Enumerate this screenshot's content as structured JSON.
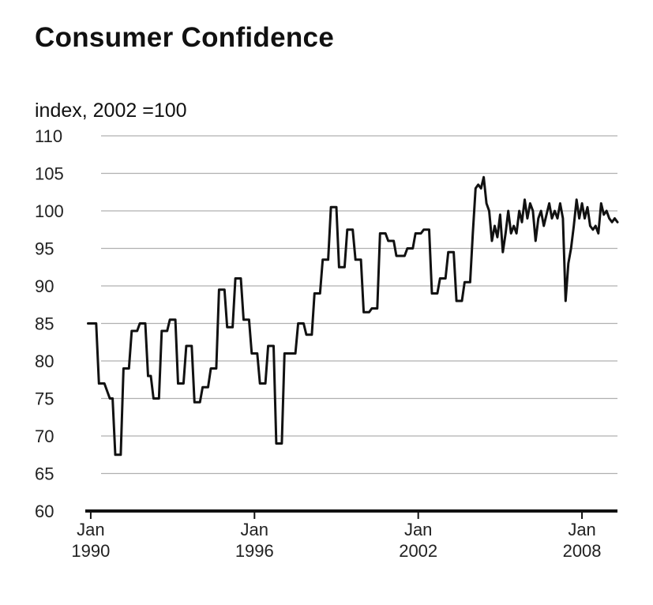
{
  "chart_data": {
    "type": "line",
    "title": "Consumer Confidence",
    "ylabel": "index, 2002 =100",
    "xlabel": "",
    "ylim": [
      60,
      110
    ],
    "yticks": [
      60,
      65,
      70,
      75,
      80,
      85,
      90,
      95,
      100,
      105,
      110
    ],
    "xlim": [
      1989.8,
      2009.3
    ],
    "xticks": [
      {
        "value": 1990,
        "line1": "Jan",
        "line2": "1990"
      },
      {
        "value": 1996,
        "line1": "Jan",
        "line2": "1996"
      },
      {
        "value": 2002,
        "line1": "Jan",
        "line2": "2002"
      },
      {
        "value": 2008,
        "line1": "Jan",
        "line2": "2008"
      }
    ],
    "grid": true,
    "series": [
      {
        "color": "#111111",
        "points": [
          [
            1989.9,
            85
          ],
          [
            1990.2,
            85
          ],
          [
            1990.3,
            77
          ],
          [
            1990.5,
            77
          ],
          [
            1990.7,
            75
          ],
          [
            1990.8,
            75
          ],
          [
            1990.9,
            67.5
          ],
          [
            1991.1,
            67.5
          ],
          [
            1991.2,
            79
          ],
          [
            1991.4,
            79
          ],
          [
            1991.5,
            84
          ],
          [
            1991.7,
            84
          ],
          [
            1991.8,
            85
          ],
          [
            1992.0,
            85
          ],
          [
            1992.1,
            78
          ],
          [
            1992.2,
            78
          ],
          [
            1992.3,
            75
          ],
          [
            1992.5,
            75
          ],
          [
            1992.6,
            84
          ],
          [
            1992.8,
            84
          ],
          [
            1992.9,
            85.5
          ],
          [
            1993.1,
            85.5
          ],
          [
            1993.2,
            77
          ],
          [
            1993.4,
            77
          ],
          [
            1993.5,
            82
          ],
          [
            1993.7,
            82
          ],
          [
            1993.8,
            74.5
          ],
          [
            1994.0,
            74.5
          ],
          [
            1994.1,
            76.5
          ],
          [
            1994.3,
            76.5
          ],
          [
            1994.4,
            79
          ],
          [
            1994.6,
            79
          ],
          [
            1994.7,
            89.5
          ],
          [
            1994.9,
            89.5
          ],
          [
            1995.0,
            84.5
          ],
          [
            1995.2,
            84.5
          ],
          [
            1995.3,
            91
          ],
          [
            1995.5,
            91
          ],
          [
            1995.6,
            85.5
          ],
          [
            1995.8,
            85.5
          ],
          [
            1995.9,
            81
          ],
          [
            1996.1,
            81
          ],
          [
            1996.2,
            77
          ],
          [
            1996.4,
            77
          ],
          [
            1996.5,
            82
          ],
          [
            1996.7,
            82
          ],
          [
            1996.8,
            69
          ],
          [
            1997.0,
            69
          ],
          [
            1997.1,
            81
          ],
          [
            1997.5,
            81
          ],
          [
            1997.6,
            85
          ],
          [
            1997.8,
            85
          ],
          [
            1997.9,
            83.5
          ],
          [
            1998.1,
            83.5
          ],
          [
            1998.2,
            89
          ],
          [
            1998.4,
            89
          ],
          [
            1998.5,
            93.5
          ],
          [
            1998.7,
            93.5
          ],
          [
            1998.8,
            100.5
          ],
          [
            1999.0,
            100.5
          ],
          [
            1999.1,
            92.5
          ],
          [
            1999.3,
            92.5
          ],
          [
            1999.4,
            97.5
          ],
          [
            1999.6,
            97.5
          ],
          [
            1999.7,
            93.5
          ],
          [
            1999.9,
            93.5
          ],
          [
            2000.0,
            86.5
          ],
          [
            2000.2,
            86.5
          ],
          [
            2000.3,
            87
          ],
          [
            2000.5,
            87
          ],
          [
            2000.6,
            97
          ],
          [
            2000.8,
            97
          ],
          [
            2000.9,
            96
          ],
          [
            2001.1,
            96
          ],
          [
            2001.2,
            94
          ],
          [
            2001.5,
            94
          ],
          [
            2001.6,
            95
          ],
          [
            2001.8,
            95
          ],
          [
            2001.9,
            97
          ],
          [
            2002.1,
            97
          ],
          [
            2002.2,
            97.5
          ],
          [
            2002.4,
            97.5
          ],
          [
            2002.5,
            89
          ],
          [
            2002.7,
            89
          ],
          [
            2002.8,
            91
          ],
          [
            2003.0,
            91
          ],
          [
            2003.1,
            94.5
          ],
          [
            2003.3,
            94.5
          ],
          [
            2003.4,
            88
          ],
          [
            2003.6,
            88
          ],
          [
            2003.7,
            90.5
          ],
          [
            2003.9,
            90.5
          ],
          [
            2004.0,
            97
          ],
          [
            2004.1,
            103
          ],
          [
            2004.2,
            103.5
          ],
          [
            2004.3,
            103
          ],
          [
            2004.4,
            104.5
          ],
          [
            2004.5,
            101
          ],
          [
            2004.6,
            100
          ],
          [
            2004.7,
            96
          ],
          [
            2004.8,
            98
          ],
          [
            2004.9,
            96.5
          ],
          [
            2005.0,
            99.5
          ],
          [
            2005.1,
            94.5
          ],
          [
            2005.2,
            97
          ],
          [
            2005.3,
            100
          ],
          [
            2005.4,
            97
          ],
          [
            2005.5,
            98
          ],
          [
            2005.6,
            97
          ],
          [
            2005.7,
            100
          ],
          [
            2005.8,
            98.5
          ],
          [
            2005.9,
            101.5
          ],
          [
            2006.0,
            99
          ],
          [
            2006.1,
            101
          ],
          [
            2006.2,
            100
          ],
          [
            2006.3,
            96
          ],
          [
            2006.4,
            99
          ],
          [
            2006.5,
            100
          ],
          [
            2006.6,
            98
          ],
          [
            2006.7,
            99.5
          ],
          [
            2006.8,
            101
          ],
          [
            2006.9,
            99
          ],
          [
            2007.0,
            100
          ],
          [
            2007.1,
            99
          ],
          [
            2007.2,
            101
          ],
          [
            2007.3,
            99
          ],
          [
            2007.4,
            88
          ],
          [
            2007.5,
            93
          ],
          [
            2007.6,
            95
          ],
          [
            2007.7,
            98
          ],
          [
            2007.8,
            101.5
          ],
          [
            2007.9,
            99
          ],
          [
            2008.0,
            101
          ],
          [
            2008.1,
            99
          ],
          [
            2008.2,
            100.5
          ],
          [
            2008.3,
            98
          ],
          [
            2008.4,
            97.5
          ],
          [
            2008.5,
            98
          ],
          [
            2008.6,
            97
          ],
          [
            2008.7,
            101
          ],
          [
            2008.8,
            99.5
          ],
          [
            2008.9,
            100
          ],
          [
            2009.0,
            99
          ],
          [
            2009.1,
            98.5
          ],
          [
            2009.2,
            99
          ],
          [
            2009.3,
            98.5
          ]
        ]
      }
    ]
  }
}
